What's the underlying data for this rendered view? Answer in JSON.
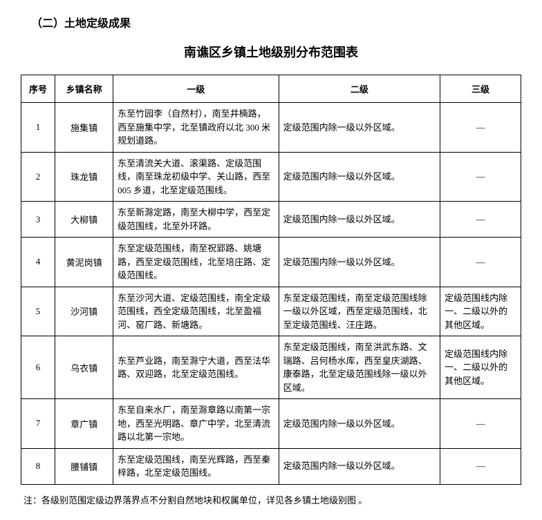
{
  "section_title": "（二）土地定级成果",
  "table_title": "南谯区乡镇土地级别分布范围表",
  "table": {
    "columns": [
      "序号",
      "乡镇名称",
      "一级",
      "二级",
      "三级"
    ],
    "rows": [
      {
        "seq": "1",
        "name": "施集镇",
        "lv1": "东至竹园李（自然村），南至井楠路，西至施集中学，北至镇政府以北 300 米规划道路。",
        "lv2": "定级范围内除一级以外区域。",
        "lv3": "—",
        "lv3_dash": true
      },
      {
        "seq": "2",
        "name": "珠龙镇",
        "lv1": "东至清流关大道、滚渠路、定级范围线，南至珠龙初级中学、关山路，西至 005 乡道，北至定级范围线。",
        "lv2": "定级范围内除一级以外区域。",
        "lv3": "—",
        "lv3_dash": true
      },
      {
        "seq": "3",
        "name": "大柳镇",
        "lv1": "东至新滁定路，南至大柳中学，西至定级范围线，北至外环路。",
        "lv2": "定级范围内除一级以外区域。",
        "lv3": "—",
        "lv3_dash": true
      },
      {
        "seq": "4",
        "name": "黄泥岗镇",
        "lv1": "东至定级范围线，南至祝郢路、姚塘路，西至定级范围线，北至培庄路、定级范围线。",
        "lv2": "定级范围内除一级以外区域。",
        "lv3": "—",
        "lv3_dash": true
      },
      {
        "seq": "5",
        "name": "沙河镇",
        "lv1": "东至沙河大道、定级范围线，南全定级范围线，西全定级范围线，北至盈福河、窑厂路、新塘路。",
        "lv2": "东至定级范围线，南至定级范围线除一级以外区域，西至定级范围线，北至定级范围线、汪庄路。",
        "lv3": "定级范围线内除一、二级以外的其他区域。",
        "lv3_dash": false
      },
      {
        "seq": "6",
        "name": "乌衣镇",
        "lv1": "东至芦业路，南至滁宁大道，西至法华路、双迎路，北至定级范围线。",
        "lv2": "东至定级范围线，南至洪武东路、文瑞路、吕何杨水库，西至皇庆湖路、康泰路，北至定级范围线除一级以外区域。",
        "lv3": "定级范围线内除一、二级以外的其他区域。",
        "lv3_dash": false
      },
      {
        "seq": "7",
        "name": "章广镇",
        "lv1": "东至自来水厂，南至滁章路以南第一宗地，西至光明路、章广中学，北至清流路以北第一宗地。",
        "lv2": "定级范围内除一级以外区域。",
        "lv3": "—",
        "lv3_dash": true
      },
      {
        "seq": "8",
        "name": "腰铺镇",
        "lv1": "东至定级范围线，南至光辉路，西至秦梓路，北至定级范围线。",
        "lv2": "定级范围内除一级以外区域。",
        "lv3": "—",
        "lv3_dash": true
      }
    ]
  },
  "footnote": "注：各级别范围定级边界落界点不分割自然地块和权属单位，详见各乡镇土地级别图 。"
}
